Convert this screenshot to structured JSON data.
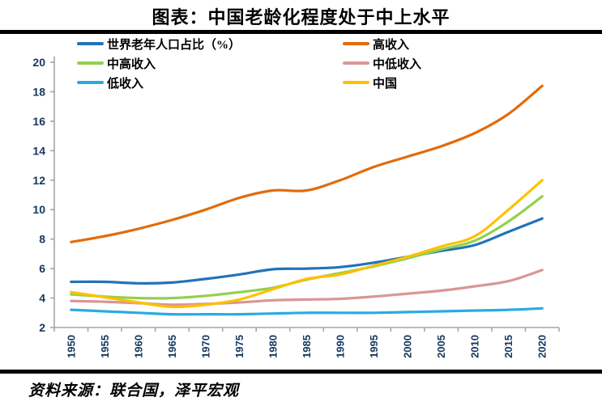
{
  "title": "图表：中国老龄化程度处于中上水平",
  "source": "资料来源：联合国，泽平宏观",
  "chart_data": {
    "type": "line",
    "title": "图表：中国老龄化程度处于中上水平",
    "categories": [
      "1950",
      "1955",
      "1960",
      "1965",
      "1970",
      "1975",
      "1980",
      "1985",
      "1990",
      "1995",
      "2000",
      "2005",
      "2010",
      "2015",
      "2020"
    ],
    "series": [
      {
        "name": "世界老年人口占比（%）",
        "color": "#2273B9",
        "values": [
          5.1,
          5.1,
          5.0,
          5.05,
          5.3,
          5.6,
          5.95,
          6.0,
          6.1,
          6.4,
          6.8,
          7.2,
          7.6,
          8.5,
          9.4
        ]
      },
      {
        "name": "高收入",
        "color": "#E26B0A",
        "values": [
          7.8,
          8.2,
          8.7,
          9.3,
          10.0,
          10.8,
          11.3,
          11.3,
          12.0,
          12.9,
          13.6,
          14.3,
          15.2,
          16.5,
          18.4
        ]
      },
      {
        "name": "中高收入",
        "color": "#92D050",
        "values": [
          4.25,
          4.1,
          4.0,
          4.0,
          4.15,
          4.4,
          4.7,
          5.25,
          5.7,
          6.15,
          6.7,
          7.3,
          7.9,
          9.2,
          10.9
        ]
      },
      {
        "name": "中低收入",
        "color": "#D99694",
        "values": [
          3.8,
          3.75,
          3.65,
          3.55,
          3.6,
          3.7,
          3.85,
          3.9,
          3.95,
          4.1,
          4.3,
          4.5,
          4.8,
          5.15,
          5.9
        ]
      },
      {
        "name": "低收入",
        "color": "#29ABE2",
        "values": [
          3.2,
          3.1,
          3.0,
          2.9,
          2.9,
          2.9,
          2.95,
          3.0,
          3.0,
          3.0,
          3.05,
          3.1,
          3.15,
          3.2,
          3.3
        ]
      },
      {
        "name": "中国",
        "color": "#FFC000",
        "values": [
          4.4,
          4.05,
          3.7,
          3.4,
          3.55,
          3.9,
          4.6,
          5.3,
          5.6,
          6.2,
          6.8,
          7.5,
          8.2,
          10.0,
          12.0
        ]
      }
    ],
    "xlabel": "",
    "ylabel": "",
    "ylim": [
      2,
      20
    ],
    "ytick_step": 2,
    "grid": false,
    "legend_position": "top",
    "style": {
      "axis_line_color": "#A6A6A6",
      "tick_label_color": "#17375E",
      "line_width": 3.2
    }
  }
}
